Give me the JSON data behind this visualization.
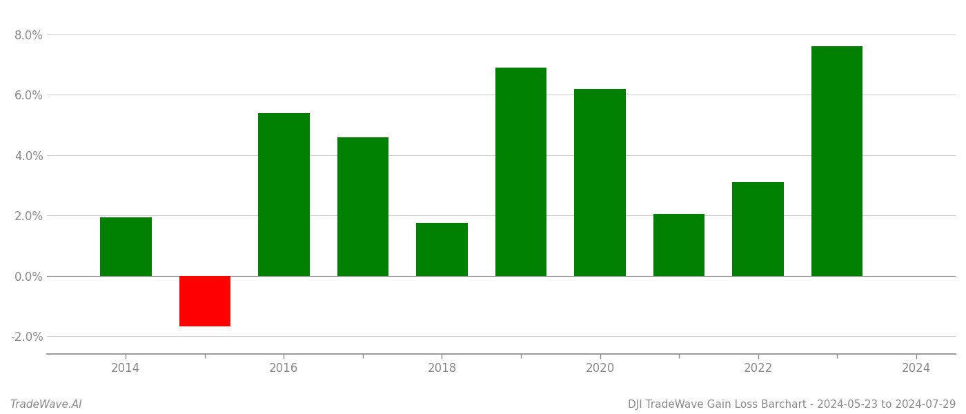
{
  "bar_years": [
    2014,
    2015,
    2016,
    2017,
    2018,
    2019,
    2020,
    2021,
    2022,
    2023
  ],
  "bar_values": [
    0.0193,
    -0.0168,
    0.054,
    0.046,
    0.0175,
    0.069,
    0.062,
    0.0205,
    0.031,
    0.076
  ],
  "bar_colors": [
    "#008000",
    "#ff0000",
    "#008000",
    "#008000",
    "#008000",
    "#008000",
    "#008000",
    "#008000",
    "#008000",
    "#008000"
  ],
  "ylim": [
    -0.026,
    0.088
  ],
  "yticks": [
    -0.02,
    0.0,
    0.02,
    0.04,
    0.06,
    0.08
  ],
  "xtick_labels": [
    2014,
    2016,
    2018,
    2020,
    2022,
    2024
  ],
  "xlim": [
    2013.0,
    2024.5
  ],
  "title": "DJI TradeWave Gain Loss Barchart - 2024-05-23 to 2024-07-29",
  "watermark": "TradeWave.AI",
  "background_color": "#ffffff",
  "grid_color": "#cccccc",
  "bar_width": 0.65,
  "title_fontsize": 11,
  "watermark_fontsize": 11,
  "tick_label_color": "#888888",
  "spine_color": "#888888",
  "tick_fontsize": 12
}
